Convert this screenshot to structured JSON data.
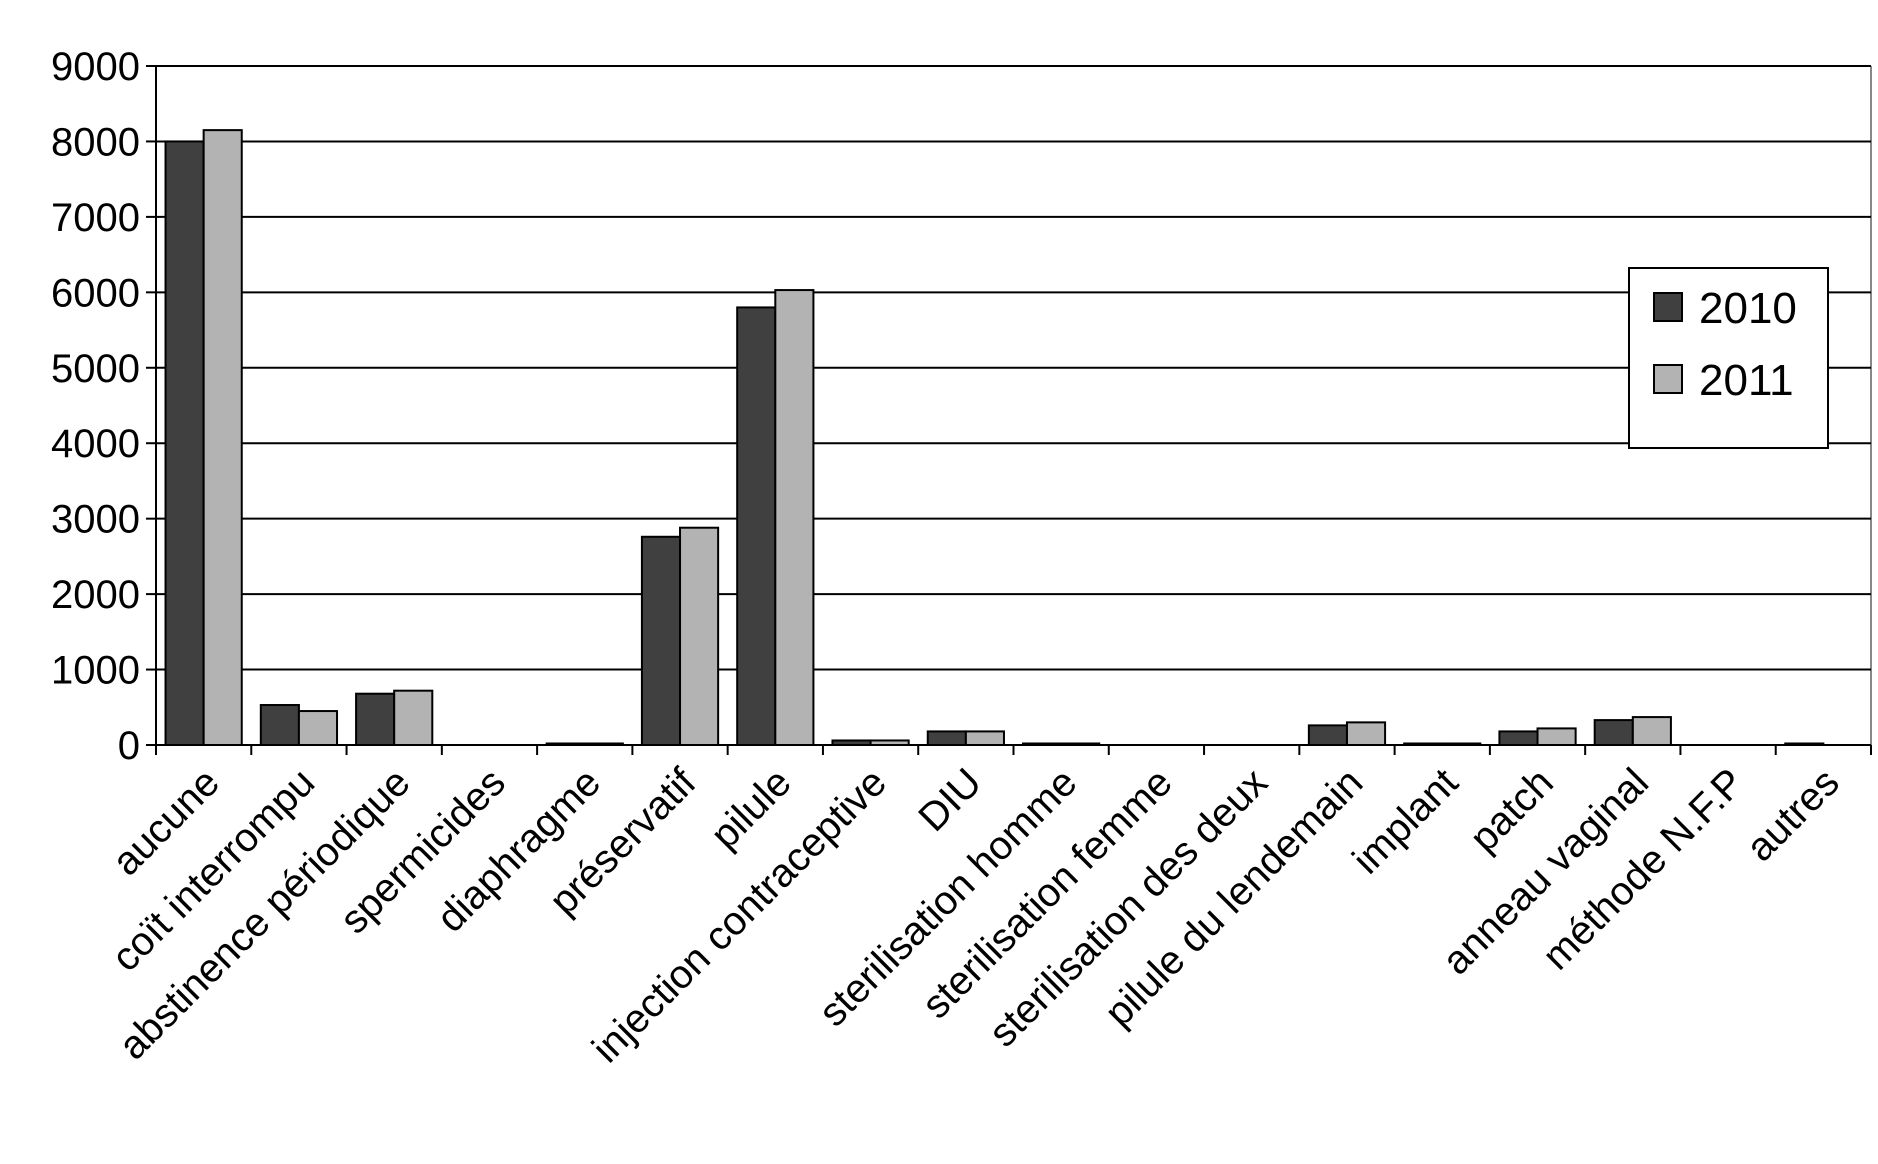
{
  "chart_data": {
    "type": "bar",
    "categories": [
      "aucune",
      "coït interrompu",
      "abstinence périodique",
      "spermicides",
      "diaphragme",
      "préservatif",
      "pilule",
      "injection contraceptive",
      "DIU",
      "sterilisation homme",
      "sterilisation femme",
      "sterilisation des deux",
      "pilule du lendemain",
      "implant",
      "patch",
      "anneau vaginal",
      "méthode N.F.P",
      "autres"
    ],
    "series": [
      {
        "name": "2010",
        "color": "#404040",
        "values": [
          8000,
          530,
          680,
          0,
          20,
          2760,
          5800,
          60,
          180,
          20,
          0,
          0,
          260,
          20,
          180,
          330,
          0,
          20
        ]
      },
      {
        "name": "2011",
        "color": "#b3b3b3",
        "values": [
          8150,
          450,
          720,
          0,
          20,
          2880,
          6030,
          60,
          180,
          20,
          0,
          0,
          300,
          20,
          220,
          370,
          0,
          0
        ]
      }
    ],
    "ylim": [
      0,
      9000
    ],
    "yticks": [
      0,
      1000,
      2000,
      3000,
      4000,
      5000,
      6000,
      7000,
      8000,
      9000
    ],
    "grid": true,
    "legend": "right"
  }
}
